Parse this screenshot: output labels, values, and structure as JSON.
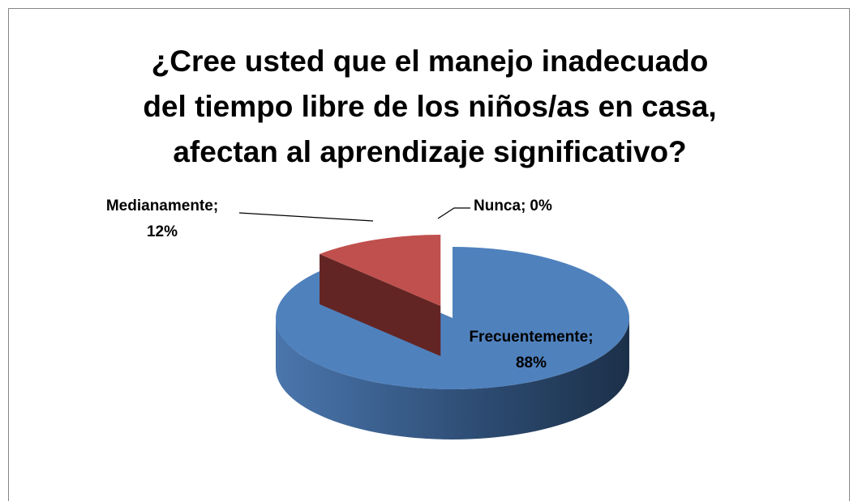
{
  "chart_data": {
    "type": "pie",
    "title": [
      "¿Cree usted que el manejo inadecuado",
      "del tiempo libre de los niños/as en casa,",
      "afectan al aprendizaje significativo?"
    ],
    "categories": [
      "Frecuentemente",
      "Medianamente",
      "Nunca"
    ],
    "values": [
      88,
      12,
      0
    ],
    "value_labels": [
      "88%",
      "12%",
      "0%"
    ],
    "label_separator": ";",
    "colors": [
      "#4f81bd",
      "#c0504d",
      "#9bbb59"
    ]
  }
}
